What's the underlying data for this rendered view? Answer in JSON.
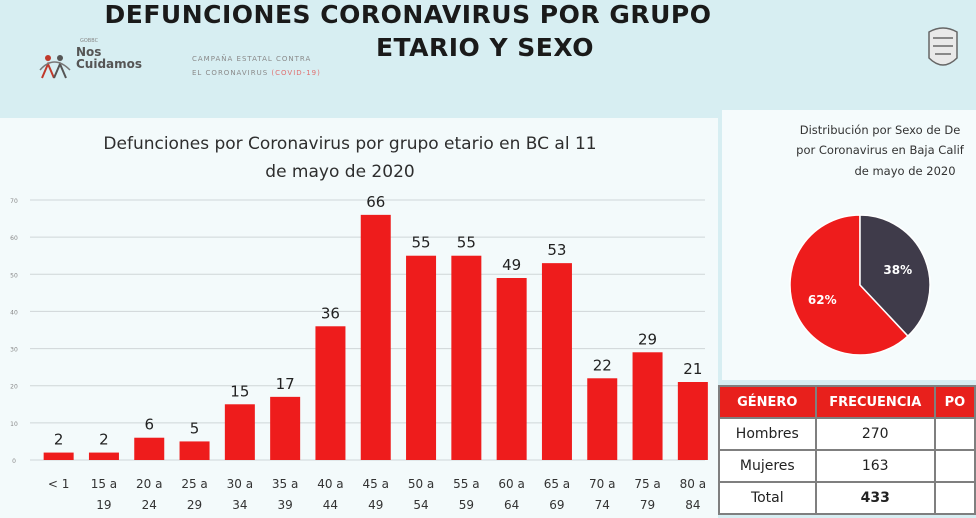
{
  "header": {
    "title_line1": "DEFUNCIONES CORONAVIRUS POR GRUPO",
    "title_line2": "ETARIO Y SEXO",
    "logo_text_small": "GOBBC",
    "logo_text_line1": "Nos",
    "logo_text_line2": "Cuidamos",
    "campaign_line1": "CAMPAÑA ESTATAL CONTRA",
    "campaign_line2": "EL CORONAVIRUS",
    "campaign_covid": "(COVID-19)"
  },
  "chart_data": [
    {
      "type": "bar",
      "title_line1": "Defunciones por Coronavirus por grupo etario en BC al 11",
      "title_line2": "de mayo de 2020",
      "categories": [
        [
          "< 1",
          ""
        ],
        [
          "15 a",
          "19"
        ],
        [
          "20 a",
          "24"
        ],
        [
          "25 a",
          "29"
        ],
        [
          "30 a",
          "34"
        ],
        [
          "35 a",
          "39"
        ],
        [
          "40 a",
          "44"
        ],
        [
          "45 a",
          "49"
        ],
        [
          "50 a",
          "54"
        ],
        [
          "55 a",
          "59"
        ],
        [
          "60 a",
          "64"
        ],
        [
          "65 a",
          "69"
        ],
        [
          "70 a",
          "74"
        ],
        [
          "75 a",
          "79"
        ],
        [
          "80 a",
          "84"
        ]
      ],
      "values": [
        2,
        2,
        6,
        5,
        15,
        17,
        36,
        66,
        55,
        55,
        49,
        53,
        22,
        29,
        21
      ],
      "ylim": [
        0,
        70
      ],
      "yticks": [
        "0",
        "10",
        "20",
        "30",
        "40",
        "50",
        "60",
        "70"
      ],
      "grid": true,
      "colors": {
        "bar": "#ee1c1c",
        "label": "#222222",
        "grid": "#cfd6d8"
      }
    },
    {
      "type": "pie",
      "title_line1": "Distribución por Sexo de De",
      "title_line2": "por Coronavirus en Baja Calif",
      "title_line3": "de mayo de 2020",
      "slices": [
        {
          "label": "62%",
          "value": 62,
          "color": "#ee1c1c"
        },
        {
          "label": "38%",
          "value": 38,
          "color": "#3f3b4a"
        }
      ]
    },
    {
      "type": "table",
      "headers": [
        "GÉNERO",
        "FRECUENCIA",
        "PO"
      ],
      "rows": [
        [
          "Hombres",
          "270",
          ""
        ],
        [
          "Mujeres",
          "163",
          ""
        ],
        [
          "Total",
          "433",
          ""
        ]
      ]
    }
  ]
}
